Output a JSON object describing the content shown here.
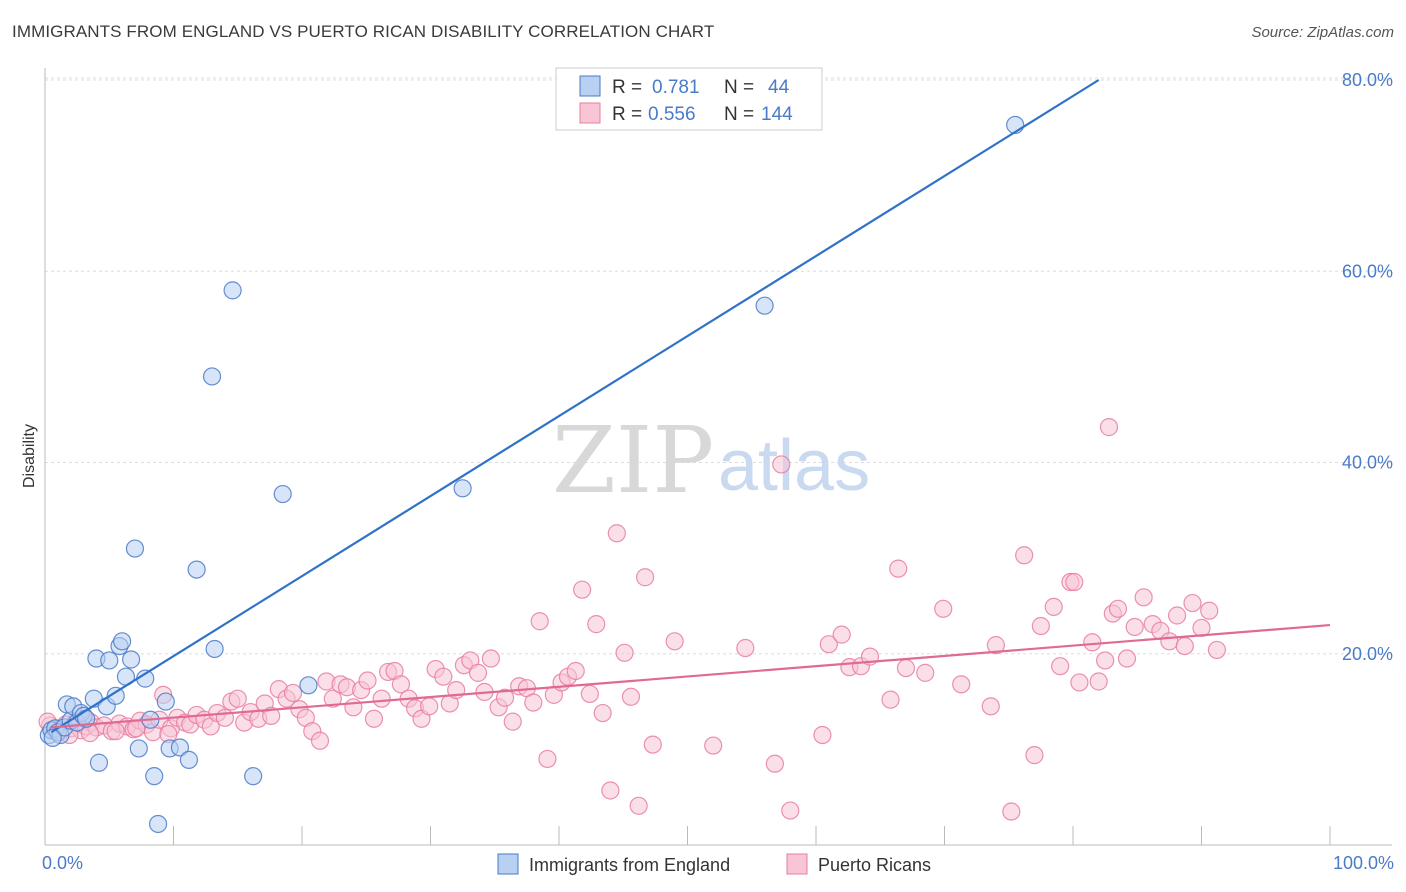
{
  "header": {
    "title": "IMMIGRANTS FROM ENGLAND VS PUERTO RICAN DISABILITY CORRELATION CHART",
    "source": "Source: ZipAtlas.com"
  },
  "watermark": {
    "zip": "ZIP",
    "atlas": "atlas"
  },
  "colors": {
    "blue": "#4a7bc8",
    "blue_fill": "#b8d0f2",
    "blue_line": "#2f72c8",
    "pink": "#e87ea1",
    "pink_fill": "#f8c5d5",
    "pink_line": "#e06a93",
    "grid": "#dddddd"
  },
  "legend": {
    "rows": [
      {
        "r_label": "R =",
        "r_value": "0.781",
        "n_label": "N =",
        "n_value": "44"
      },
      {
        "r_label": "R =",
        "r_value": "0.556",
        "n_label": "N =",
        "n_value": "144"
      }
    ]
  },
  "chart_data": {
    "type": "scatter",
    "title": "IMMIGRANTS FROM ENGLAND VS PUERTO RICAN DISABILITY CORRELATION CHART",
    "xlabel": "",
    "ylabel": "Disability",
    "xlim": [
      0,
      100
    ],
    "ylim": [
      0,
      80
    ],
    "x_tick_labels": {
      "min": "0.0%",
      "max": "100.0%"
    },
    "y_ticks": [
      {
        "value": 20,
        "label": "20.0%"
      },
      {
        "value": 40,
        "label": "40.0%"
      },
      {
        "value": 60,
        "label": "60.0%"
      },
      {
        "value": 80,
        "label": "80.0%"
      }
    ],
    "grid": true,
    "legend_position": "top-center",
    "series": [
      {
        "name": "Immigrants from England",
        "color": "#4a7bc8",
        "r": 0.781,
        "n": 44,
        "trend": {
          "x0": 0.5,
          "y0": 11.8,
          "x1": 82,
          "y1": 80
        },
        "points": [
          [
            0.3,
            11.5
          ],
          [
            0.5,
            12.0
          ],
          [
            0.8,
            12.2
          ],
          [
            1.0,
            11.8
          ],
          [
            1.2,
            11.5
          ],
          [
            1.5,
            12.3
          ],
          [
            1.7,
            14.7
          ],
          [
            2.0,
            13.0
          ],
          [
            2.2,
            14.5
          ],
          [
            2.5,
            12.8
          ],
          [
            2.8,
            13.8
          ],
          [
            3.0,
            13.5
          ],
          [
            3.2,
            13.2
          ],
          [
            3.8,
            15.3
          ],
          [
            4.0,
            19.5
          ],
          [
            4.2,
            8.6
          ],
          [
            4.8,
            14.5
          ],
          [
            5.0,
            19.3
          ],
          [
            5.5,
            15.6
          ],
          [
            5.8,
            20.8
          ],
          [
            6.0,
            21.3
          ],
          [
            6.3,
            17.6
          ],
          [
            6.7,
            19.4
          ],
          [
            7.0,
            31.0
          ],
          [
            7.3,
            10.1
          ],
          [
            7.8,
            17.4
          ],
          [
            8.2,
            13.1
          ],
          [
            8.5,
            7.2
          ],
          [
            8.8,
            2.2
          ],
          [
            9.4,
            15.0
          ],
          [
            9.7,
            10.1
          ],
          [
            10.5,
            10.2
          ],
          [
            11.2,
            8.9
          ],
          [
            11.8,
            28.8
          ],
          [
            13.0,
            49.0
          ],
          [
            13.2,
            20.5
          ],
          [
            14.6,
            58.0
          ],
          [
            16.2,
            7.2
          ],
          [
            18.5,
            36.7
          ],
          [
            20.5,
            16.7
          ],
          [
            32.5,
            37.3
          ],
          [
            56.0,
            56.4
          ],
          [
            75.5,
            75.3
          ],
          [
            0.6,
            11.2
          ]
        ]
      },
      {
        "name": "Puerto Ricans",
        "color": "#e87ea1",
        "r": 0.556,
        "n": 144,
        "trend": {
          "x0": 0.5,
          "y0": 12.3,
          "x1": 100,
          "y1": 23.0
        },
        "points": [
          [
            0.4,
            12.5
          ],
          [
            0.8,
            12.0
          ],
          [
            1.2,
            11.8
          ],
          [
            1.6,
            12.6
          ],
          [
            2.0,
            12.2
          ],
          [
            2.4,
            12.9
          ],
          [
            2.8,
            12.0
          ],
          [
            3.2,
            12.4
          ],
          [
            3.6,
            12.8
          ],
          [
            4.0,
            12.3
          ],
          [
            4.6,
            12.5
          ],
          [
            5.2,
            11.9
          ],
          [
            5.8,
            12.7
          ],
          [
            6.4,
            12.4
          ],
          [
            6.9,
            12.1
          ],
          [
            7.4,
            13.0
          ],
          [
            7.9,
            12.6
          ],
          [
            8.4,
            11.8
          ],
          [
            8.9,
            13.1
          ],
          [
            9.2,
            15.7
          ],
          [
            9.8,
            12.2
          ],
          [
            10.3,
            13.3
          ],
          [
            10.9,
            12.8
          ],
          [
            11.3,
            12.6
          ],
          [
            11.8,
            13.6
          ],
          [
            12.4,
            13.1
          ],
          [
            12.9,
            12.4
          ],
          [
            13.4,
            13.8
          ],
          [
            14.0,
            13.3
          ],
          [
            14.5,
            15.0
          ],
          [
            15.0,
            15.3
          ],
          [
            15.5,
            12.8
          ],
          [
            16.0,
            13.9
          ],
          [
            16.6,
            13.2
          ],
          [
            17.1,
            14.8
          ],
          [
            17.6,
            13.5
          ],
          [
            18.2,
            16.3
          ],
          [
            18.8,
            15.3
          ],
          [
            19.3,
            15.9
          ],
          [
            19.8,
            14.2
          ],
          [
            20.3,
            13.3
          ],
          [
            20.8,
            11.9
          ],
          [
            21.4,
            10.9
          ],
          [
            21.9,
            17.1
          ],
          [
            22.4,
            15.3
          ],
          [
            23.0,
            16.8
          ],
          [
            23.5,
            16.5
          ],
          [
            24.0,
            14.4
          ],
          [
            24.6,
            16.2
          ],
          [
            25.1,
            17.2
          ],
          [
            25.6,
            13.2
          ],
          [
            26.2,
            15.3
          ],
          [
            26.7,
            18.1
          ],
          [
            27.2,
            18.2
          ],
          [
            27.7,
            16.8
          ],
          [
            28.3,
            15.3
          ],
          [
            28.8,
            14.3
          ],
          [
            29.3,
            13.2
          ],
          [
            29.9,
            14.5
          ],
          [
            30.4,
            18.4
          ],
          [
            31.0,
            17.6
          ],
          [
            31.5,
            14.8
          ],
          [
            32.0,
            16.2
          ],
          [
            32.6,
            18.8
          ],
          [
            33.1,
            19.3
          ],
          [
            33.7,
            18.0
          ],
          [
            34.2,
            16.0
          ],
          [
            34.7,
            19.5
          ],
          [
            35.3,
            14.4
          ],
          [
            35.8,
            15.4
          ],
          [
            36.4,
            12.9
          ],
          [
            36.9,
            16.6
          ],
          [
            37.5,
            16.4
          ],
          [
            38.0,
            14.9
          ],
          [
            38.5,
            23.4
          ],
          [
            39.1,
            9.0
          ],
          [
            39.6,
            15.7
          ],
          [
            40.2,
            17.0
          ],
          [
            40.7,
            17.6
          ],
          [
            41.3,
            18.2
          ],
          [
            41.8,
            26.7
          ],
          [
            42.4,
            15.8
          ],
          [
            42.9,
            23.1
          ],
          [
            43.4,
            13.8
          ],
          [
            44.0,
            5.7
          ],
          [
            44.5,
            32.6
          ],
          [
            45.1,
            20.1
          ],
          [
            45.6,
            15.5
          ],
          [
            46.2,
            4.1
          ],
          [
            46.7,
            28.0
          ],
          [
            47.3,
            10.5
          ],
          [
            49.0,
            21.3
          ],
          [
            52.0,
            10.4
          ],
          [
            54.5,
            20.6
          ],
          [
            56.8,
            8.5
          ],
          [
            57.3,
            39.8
          ],
          [
            58.0,
            3.6
          ],
          [
            60.5,
            11.5
          ],
          [
            61.0,
            21.0
          ],
          [
            62.0,
            22.0
          ],
          [
            62.6,
            18.6
          ],
          [
            63.5,
            18.7
          ],
          [
            64.2,
            19.7
          ],
          [
            65.8,
            15.2
          ],
          [
            66.4,
            28.9
          ],
          [
            67.0,
            18.5
          ],
          [
            68.5,
            18.0
          ],
          [
            69.9,
            24.7
          ],
          [
            71.3,
            16.8
          ],
          [
            73.6,
            14.5
          ],
          [
            74.0,
            20.9
          ],
          [
            75.2,
            3.5
          ],
          [
            76.2,
            30.3
          ],
          [
            77.0,
            9.4
          ],
          [
            77.5,
            22.9
          ],
          [
            78.5,
            24.9
          ],
          [
            79.0,
            18.7
          ],
          [
            79.8,
            27.5
          ],
          [
            80.1,
            27.5
          ],
          [
            80.5,
            17.0
          ],
          [
            81.5,
            21.2
          ],
          [
            82.0,
            17.1
          ],
          [
            82.5,
            19.3
          ],
          [
            82.8,
            43.7
          ],
          [
            83.1,
            24.2
          ],
          [
            83.5,
            24.7
          ],
          [
            84.2,
            19.5
          ],
          [
            84.8,
            22.8
          ],
          [
            85.5,
            25.9
          ],
          [
            86.2,
            23.1
          ],
          [
            86.8,
            22.4
          ],
          [
            87.5,
            21.3
          ],
          [
            88.1,
            24.0
          ],
          [
            88.7,
            20.8
          ],
          [
            89.3,
            25.3
          ],
          [
            90.0,
            22.7
          ],
          [
            90.6,
            24.5
          ],
          [
            91.2,
            20.4
          ],
          [
            0.2,
            12.9
          ],
          [
            1.9,
            11.5
          ],
          [
            3.5,
            11.7
          ],
          [
            5.5,
            11.9
          ],
          [
            7.1,
            12.2
          ],
          [
            9.6,
            11.6
          ]
        ]
      }
    ]
  },
  "bottom_legend": {
    "items": [
      {
        "label": "Immigrants from England"
      },
      {
        "label": "Puerto Ricans"
      }
    ]
  }
}
